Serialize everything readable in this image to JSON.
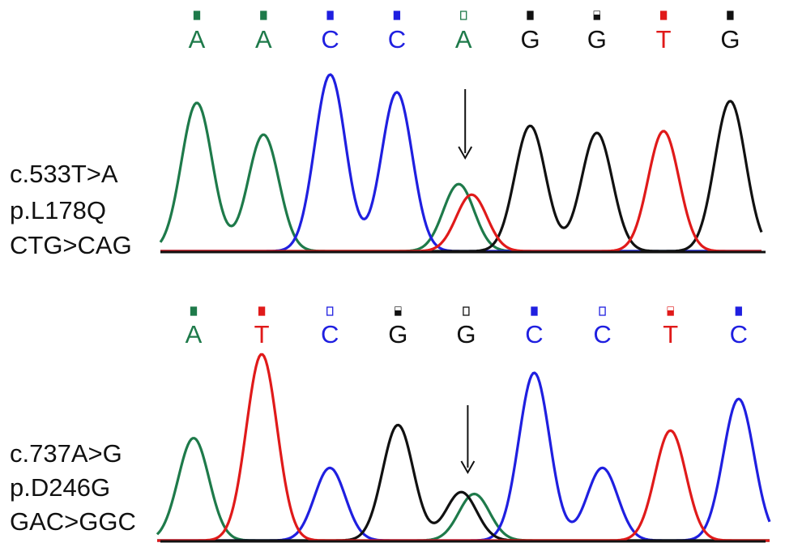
{
  "colors": {
    "A": "#1e7a4a",
    "C": "#1f1fe0",
    "G": "#111111",
    "T": "#e01a1a",
    "baseline": "#111111",
    "text": "#111111"
  },
  "panels": [
    {
      "mutation_lines": [
        "c.533T>A",
        "p.L178Q",
        "CTG>CAG"
      ],
      "bases": [
        "A",
        "A",
        "C",
        "C",
        "A",
        "G",
        "G",
        "T",
        "G"
      ],
      "quality_markers": [
        "high",
        "high",
        "high",
        "high",
        "low",
        "high",
        "mid",
        "high",
        "high"
      ],
      "arrow_at_index": 4,
      "peaks": [
        {
          "base": "A",
          "height": 0.84
        },
        {
          "base": "A",
          "height": 0.66
        },
        {
          "base": "C",
          "height": 1.0
        },
        {
          "base": "C",
          "height": 0.9
        },
        {
          "base": "A",
          "height": 0.38,
          "secondary": {
            "base": "T",
            "height": 0.32
          }
        },
        {
          "base": "G",
          "height": 0.71
        },
        {
          "base": "G",
          "height": 0.67
        },
        {
          "base": "T",
          "height": 0.68
        },
        {
          "base": "G",
          "height": 0.85
        }
      ]
    },
    {
      "mutation_lines": [
        "c.737A>G",
        "p.D246G",
        "GAC>GGC"
      ],
      "bases": [
        "A",
        "T",
        "C",
        "G",
        "G",
        "C",
        "C",
        "T",
        "C"
      ],
      "quality_markers": [
        "high",
        "high",
        "low",
        "mid",
        "low",
        "high",
        "low",
        "mid",
        "high"
      ],
      "arrow_at_index": 4,
      "peaks": [
        {
          "base": "A",
          "height": 0.55
        },
        {
          "base": "T",
          "height": 1.0
        },
        {
          "base": "C",
          "height": 0.39
        },
        {
          "base": "G",
          "height": 0.62
        },
        {
          "base": "G",
          "height": 0.26,
          "secondary": {
            "base": "A",
            "height": 0.25
          }
        },
        {
          "base": "C",
          "height": 0.9
        },
        {
          "base": "C",
          "height": 0.39
        },
        {
          "base": "T",
          "height": 0.59
        },
        {
          "base": "C",
          "height": 0.76
        }
      ]
    }
  ]
}
